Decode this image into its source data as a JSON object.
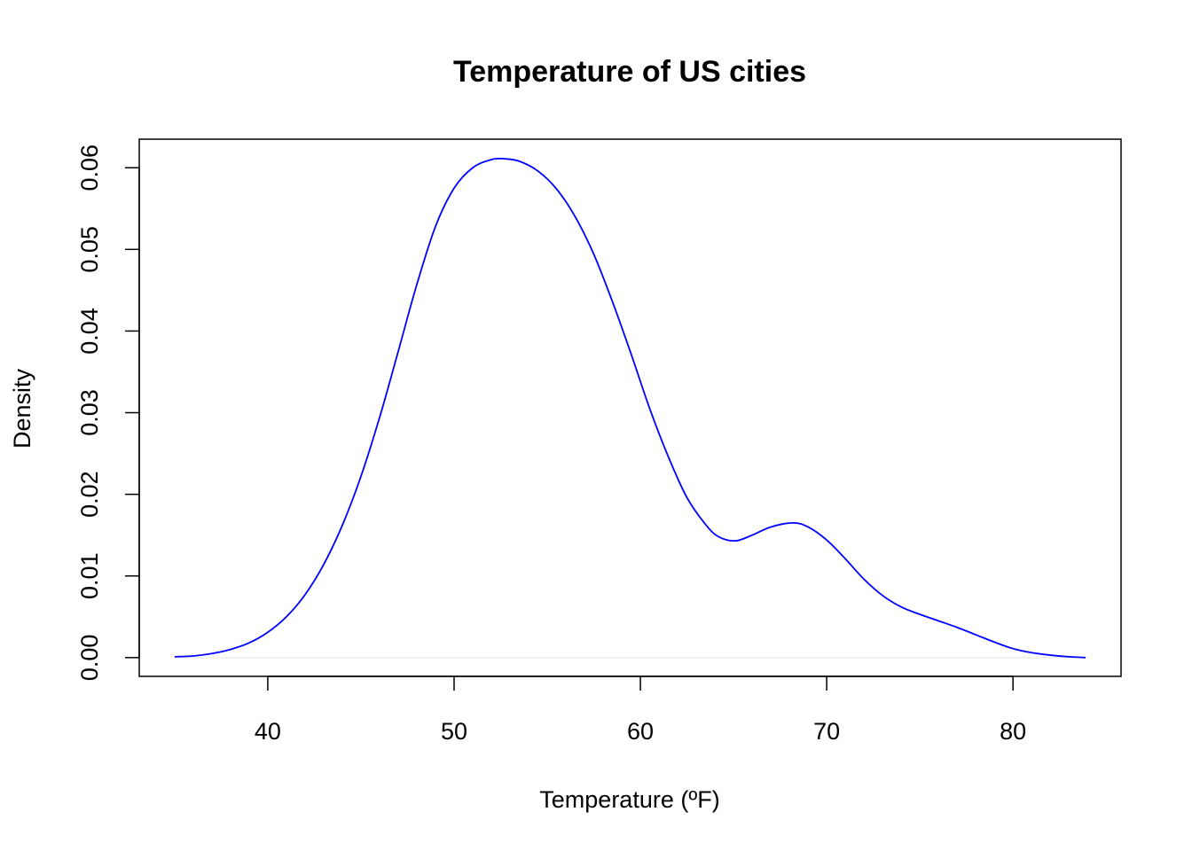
{
  "chart_data": {
    "type": "line",
    "title": "Temperature of US cities",
    "xlabel": "Temperature (ºF)",
    "ylabel": "Density",
    "xlim": [
      33.1,
      85.8
    ],
    "ylim": [
      -0.0023,
      0.0635
    ],
    "x_ticks": [
      40,
      50,
      60,
      70,
      80
    ],
    "x_tick_labels": [
      "40",
      "50",
      "60",
      "70",
      "80"
    ],
    "y_ticks": [
      0.0,
      0.01,
      0.02,
      0.03,
      0.04,
      0.05,
      0.06
    ],
    "y_tick_labels": [
      "0.00",
      "0.01",
      "0.02",
      "0.03",
      "0.04",
      "0.05",
      "0.06"
    ],
    "grid": false,
    "baseline": {
      "y": 0,
      "color": "#eeeeee"
    },
    "series": [
      {
        "color": "#0000ff",
        "x": [
          35.0,
          36.0,
          37.0,
          38.0,
          39.0,
          40.0,
          41.0,
          42.0,
          43.0,
          44.0,
          45.0,
          46.0,
          47.0,
          48.0,
          49.0,
          50.0,
          51.0,
          52.0,
          52.7,
          53.5,
          54.5,
          55.5,
          56.5,
          57.5,
          58.5,
          59.5,
          60.5,
          61.5,
          62.5,
          63.5,
          64.2,
          65.1,
          66.0,
          67.0,
          68.2,
          69.0,
          70.0,
          71.0,
          72.0,
          73.0,
          74.0,
          75.0,
          76.0,
          77.0,
          78.0,
          79.0,
          80.0,
          81.0,
          82.0,
          83.0,
          83.9
        ],
        "y": [
          0.0001,
          0.0002,
          0.0005,
          0.001,
          0.0018,
          0.0031,
          0.005,
          0.0077,
          0.0114,
          0.0162,
          0.0222,
          0.0294,
          0.0375,
          0.0457,
          0.0528,
          0.0575,
          0.06,
          0.061,
          0.0611,
          0.0608,
          0.0596,
          0.0574,
          0.054,
          0.0494,
          0.0436,
          0.0372,
          0.0305,
          0.0246,
          0.0196,
          0.0163,
          0.0148,
          0.0143,
          0.015,
          0.016,
          0.0165,
          0.016,
          0.0144,
          0.0121,
          0.0096,
          0.0076,
          0.0062,
          0.0053,
          0.0045,
          0.0037,
          0.0028,
          0.0019,
          0.0011,
          0.0006,
          0.0003,
          0.0001,
          0.0
        ]
      }
    ]
  }
}
